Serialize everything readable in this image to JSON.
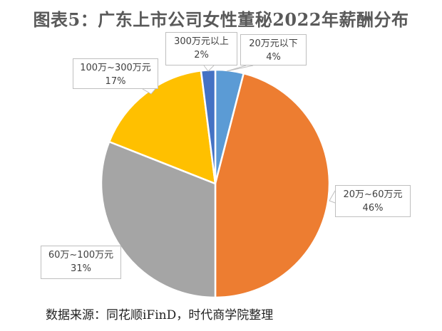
{
  "chart_data": {
    "type": "pie",
    "title": "图表5：广东上市公司女性董秘2022年薪酬分布",
    "categories": [
      "20万元以下",
      "20万~60万元",
      "60万~100万元",
      "100万~300万元",
      "300万元以上"
    ],
    "values": [
      4,
      46,
      31,
      17,
      2
    ],
    "value_labels": [
      "4%",
      "46%",
      "31%",
      "17%",
      "2%"
    ],
    "colors": [
      "#5B9BD5",
      "#ED7D31",
      "#A5A5A5",
      "#FFC000",
      "#4472C4"
    ],
    "start_angle_deg": 0,
    "direction": "clockwise",
    "legend": "none (data callouts)",
    "source": "数据来源：同花顺iFinD，时代商学院整理"
  },
  "labels": {
    "s0": {
      "name": "20万元以下",
      "pct": "4%"
    },
    "s1": {
      "name": "20万~60万元",
      "pct": "46%"
    },
    "s2": {
      "name": "60万~100万元",
      "pct": "31%"
    },
    "s3": {
      "name": "100万~300万元",
      "pct": "17%"
    },
    "s4": {
      "name": "300万元以上",
      "pct": "2%"
    }
  }
}
